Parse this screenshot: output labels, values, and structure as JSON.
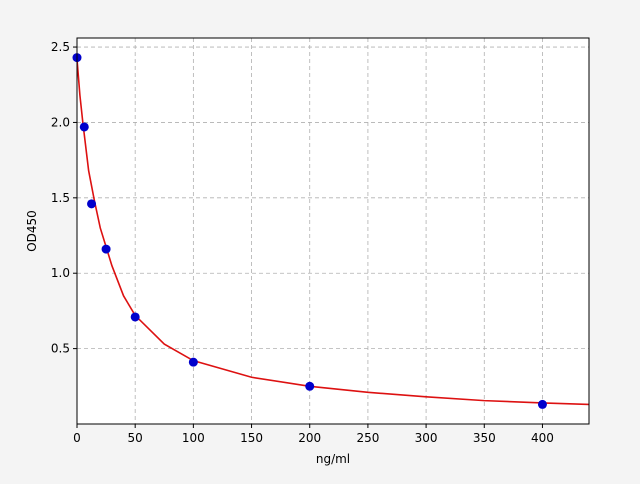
{
  "chart_data": {
    "type": "scatter-curve",
    "xlabel": "ng/ml",
    "ylabel": "OD450",
    "xlim": [
      0,
      440
    ],
    "ylim": [
      0,
      2.56
    ],
    "xticks": [
      0,
      50,
      100,
      150,
      200,
      250,
      300,
      350,
      400
    ],
    "yticks": [
      0.5,
      {
        "value": 1,
        "label": "1.0"
      },
      1.5,
      {
        "value": 2,
        "label": "2.0"
      },
      2.5
    ],
    "grid": true,
    "points": {
      "color": "#0000cc",
      "x": [
        0,
        6.25,
        12.5,
        25,
        50,
        100,
        200,
        400
      ],
      "values": [
        2.43,
        1.97,
        1.46,
        1.16,
        0.71,
        0.41,
        0.25,
        0.13
      ]
    },
    "curve": {
      "color": "#dd1111",
      "x": [
        0,
        2.5,
        5,
        10,
        15,
        20,
        30,
        40,
        50,
        75,
        100,
        150,
        200,
        250,
        300,
        350,
        400,
        440
      ],
      "values": [
        2.42,
        2.18,
        2.0,
        1.68,
        1.48,
        1.3,
        1.05,
        0.85,
        0.72,
        0.53,
        0.42,
        0.31,
        0.25,
        0.21,
        0.18,
        0.155,
        0.14,
        0.13
      ]
    }
  }
}
